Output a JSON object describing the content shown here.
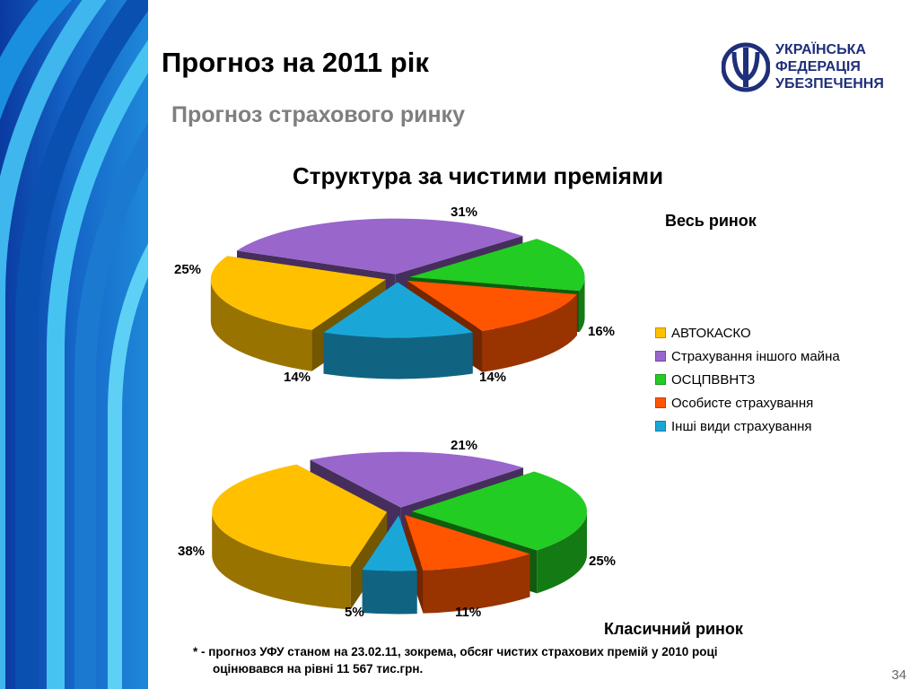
{
  "slide": {
    "title": "Прогноз на 2011 рік",
    "subtitle": "Прогноз страхового ринку",
    "heading": "Структура за чистими преміями",
    "page_number": "34"
  },
  "logo": {
    "line1": "УКРАЇНСЬКА",
    "line2": "ФЕДЕРАЦІЯ",
    "line3": "УБЕЗПЕЧЕННЯ",
    "color": "#1f2f7a"
  },
  "footnote": {
    "line1": "* -  прогноз УФУ станом на 23.02.11, зокрема, обсяг чистих страхових премій у 2010 році",
    "line2": "оцінювався на рівні 11 567 тис.грн."
  },
  "chart_data": [
    {
      "type": "pie",
      "title": "Весь ринок",
      "categories": [
        "АВТОКАСКО",
        "Страхування іншого майна",
        "ОСЦПВВНТЗ",
        "Особисте страхування",
        "Інші види страхування"
      ],
      "values": [
        25,
        31,
        16,
        14,
        14
      ],
      "labels": [
        "25%",
        "31%",
        "16%",
        "14%",
        "14%"
      ],
      "colors": [
        "#ffc000",
        "#9966cc",
        "#22cc22",
        "#ff5500",
        "#1aa7d8"
      ],
      "legend_position": "right"
    },
    {
      "type": "pie",
      "title": "Класичний ринок",
      "categories": [
        "АВТОКАСКО",
        "Страхування іншого майна",
        "ОСЦПВВНТЗ",
        "Особисте страхування",
        "Інші види страхування"
      ],
      "values": [
        38,
        21,
        25,
        11,
        5
      ],
      "labels": [
        "38%",
        "21%",
        "25%",
        "11%",
        "5%"
      ],
      "colors": [
        "#ffc000",
        "#9966cc",
        "#22cc22",
        "#ff5500",
        "#1aa7d8"
      ]
    }
  ]
}
